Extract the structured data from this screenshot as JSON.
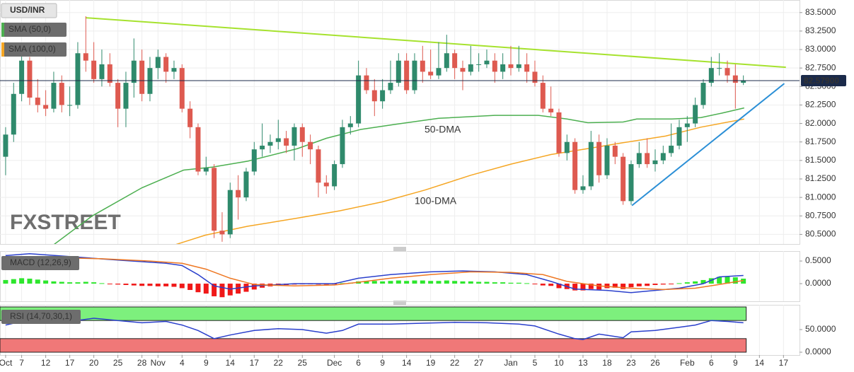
{
  "chart_data": [
    {
      "type": "candlestick",
      "title": "USD/INR",
      "watermark": "FXSTREET",
      "x": [
        0,
        1,
        2,
        3,
        4,
        5,
        6,
        7,
        8,
        9,
        10,
        11,
        12,
        13,
        14,
        15,
        16,
        17,
        18,
        19,
        20,
        21,
        22,
        23,
        24,
        25,
        26,
        27,
        28,
        29,
        30,
        31,
        32,
        33,
        34,
        35,
        36,
        37,
        38,
        39,
        40,
        41,
        42,
        43,
        44,
        45,
        46,
        47,
        48,
        49,
        50,
        51,
        52,
        53,
        54,
        55,
        56,
        57,
        58,
        59,
        60,
        61,
        62,
        63,
        64,
        65,
        66,
        67,
        68,
        69,
        70,
        71,
        72,
        73,
        74,
        75,
        76,
        77,
        78,
        79,
        80,
        81,
        82,
        83,
        84,
        85,
        86,
        87,
        88,
        89,
        90,
        91,
        92
      ],
      "open": [
        81.55,
        81.85,
        82.4,
        82.85,
        82.35,
        82.25,
        82.2,
        82.55,
        82.25,
        82.25,
        82.95,
        82.85,
        82.6,
        82.8,
        82.55,
        82.2,
        82.55,
        82.85,
        82.4,
        82.75,
        82.9,
        82.7,
        82.75,
        82.2,
        81.95,
        81.35,
        81.4,
        80.55,
        80.5,
        81.1,
        81.0,
        81.35,
        81.65,
        81.7,
        81.75,
        81.8,
        81.7,
        81.95,
        81.75,
        81.65,
        81.2,
        81.15,
        81.45,
        81.95,
        82.0,
        82.65,
        82.45,
        82.3,
        82.45,
        82.55,
        82.85,
        82.45,
        82.85,
        82.7,
        82.65,
        82.75,
        82.95,
        82.75,
        82.7,
        82.8,
        82.8,
        82.85,
        82.7,
        82.8,
        82.75,
        82.8,
        82.7,
        82.55,
        82.2,
        82.15,
        81.6,
        81.75,
        81.1,
        81.15,
        81.75,
        81.3,
        81.7,
        81.55,
        80.95,
        81.45,
        81.6,
        81.45,
        81.5,
        81.6,
        81.7,
        81.95,
        82.0,
        82.25,
        82.55,
        82.75,
        82.75,
        82.65,
        82.55
      ],
      "high": [
        81.95,
        82.55,
        82.95,
        82.9,
        82.6,
        82.45,
        82.7,
        82.65,
        82.5,
        83.1,
        83.45,
        83.1,
        83.0,
        82.95,
        82.6,
        82.7,
        83.15,
        83.0,
        82.9,
        83.0,
        82.95,
        82.85,
        82.8,
        82.3,
        82.0,
        81.55,
        81.45,
        80.8,
        81.2,
        81.3,
        81.4,
        81.75,
        82.0,
        81.85,
        82.05,
        81.9,
        82.0,
        82.0,
        81.85,
        81.7,
        81.3,
        81.5,
        82.05,
        82.1,
        82.85,
        82.75,
        82.6,
        82.6,
        82.85,
        82.95,
        82.95,
        82.95,
        83.05,
        83.0,
        83.1,
        83.2,
        83.0,
        82.85,
        83.05,
        82.95,
        83.0,
        82.95,
        82.95,
        83.05,
        83.05,
        82.95,
        82.85,
        82.65,
        82.5,
        82.2,
        81.85,
        81.8,
        81.3,
        81.9,
        81.85,
        81.8,
        81.75,
        81.6,
        81.5,
        81.75,
        81.8,
        81.65,
        81.7,
        82.0,
        82.05,
        82.1,
        82.35,
        82.6,
        82.9,
        82.95,
        82.85,
        82.8,
        82.65
      ],
      "low": [
        81.3,
        81.75,
        82.3,
        82.25,
        82.15,
        82.1,
        82.15,
        82.15,
        82.1,
        82.2,
        82.7,
        82.55,
        82.5,
        82.5,
        81.95,
        81.95,
        82.35,
        82.3,
        82.3,
        82.6,
        82.55,
        82.6,
        82.15,
        81.8,
        81.3,
        81.3,
        80.45,
        80.4,
        80.45,
        80.7,
        80.95,
        81.3,
        81.55,
        81.6,
        81.65,
        81.6,
        81.5,
        81.55,
        81.45,
        81.0,
        81.05,
        81.1,
        81.4,
        81.85,
        81.95,
        82.4,
        82.1,
        82.2,
        82.4,
        82.5,
        82.4,
        82.4,
        82.55,
        82.6,
        82.6,
        82.7,
        82.6,
        82.45,
        82.65,
        82.7,
        82.75,
        82.55,
        82.6,
        82.65,
        82.7,
        82.55,
        82.5,
        82.15,
        82.1,
        81.55,
        81.5,
        81.05,
        81.05,
        81.1,
        81.2,
        81.25,
        81.45,
        80.9,
        80.9,
        81.4,
        81.4,
        81.35,
        81.45,
        81.55,
        81.65,
        81.75,
        81.95,
        82.2,
        82.5,
        82.65,
        82.55,
        82.2,
        82.52
      ],
      "close": [
        81.85,
        82.4,
        82.85,
        82.35,
        82.25,
        82.2,
        82.55,
        82.25,
        82.25,
        82.95,
        82.85,
        82.6,
        82.8,
        82.55,
        82.2,
        82.55,
        82.85,
        82.4,
        82.75,
        82.9,
        82.7,
        82.75,
        82.2,
        81.95,
        81.35,
        81.4,
        80.55,
        80.5,
        81.1,
        81.0,
        81.35,
        81.65,
        81.7,
        81.75,
        81.8,
        81.7,
        81.95,
        81.75,
        81.65,
        81.2,
        81.15,
        81.45,
        81.95,
        82.0,
        82.65,
        82.45,
        82.3,
        82.45,
        82.55,
        82.85,
        82.45,
        82.85,
        82.7,
        82.65,
        82.75,
        82.95,
        82.75,
        82.7,
        82.8,
        82.8,
        82.85,
        82.7,
        82.8,
        82.75,
        82.8,
        82.7,
        82.55,
        82.2,
        82.15,
        81.6,
        81.75,
        81.1,
        81.15,
        81.75,
        81.3,
        81.7,
        81.55,
        80.95,
        81.45,
        81.6,
        81.45,
        81.5,
        81.6,
        81.7,
        81.95,
        82.0,
        82.25,
        82.55,
        82.75,
        82.75,
        82.65,
        82.55,
        82.58
      ],
      "up_color": "#2f8a6c",
      "down_color": "#de5a50",
      "series": [
        {
          "name": "SMA (50,0)",
          "color": "#4caf50",
          "x": [
            5.5,
            10.8,
            17,
            22.2,
            25.8,
            30.2,
            36.4,
            40,
            44.3,
            48.7,
            54,
            61,
            66.4,
            70,
            72.6,
            77,
            78.7,
            83.1,
            86.7,
            89.3,
            92.1
          ],
          "values": [
            80.32,
            80.75,
            81.13,
            81.37,
            81.41,
            81.49,
            81.66,
            81.8,
            81.92,
            81.99,
            82.07,
            82.11,
            82.11,
            82.06,
            82.01,
            82.02,
            82.06,
            82.06,
            82.08,
            82.14,
            82.21
          ]
        },
        {
          "name": "SMA (100,0)",
          "color": "#f5a623",
          "x": [
            20,
            24.9,
            30.2,
            36.4,
            41.7,
            47,
            52.3,
            58,
            63,
            68,
            72.6,
            77,
            82.3,
            86.7,
            92.1
          ],
          "values": [
            80.32,
            80.49,
            80.61,
            80.72,
            80.82,
            80.94,
            81.1,
            81.3,
            81.45,
            81.58,
            81.66,
            81.74,
            81.83,
            81.95,
            82.06
          ]
        }
      ],
      "trendlines": [
        {
          "color": "#a6e22e",
          "x": [
            10,
            97.3
          ],
          "values": [
            83.43,
            82.76
          ]
        },
        {
          "color": "#2b8fd6",
          "x": [
            78.1,
            97.1
          ],
          "values": [
            80.89,
            82.54
          ]
        }
      ],
      "annotations": [
        {
          "text": "50-DMA",
          "color": "#4caf50"
        },
        {
          "text": "100-DMA",
          "color": "#f5a623"
        }
      ],
      "last": {
        "value": 82.579,
        "label": "82.57900"
      },
      "ylim": [
        80.37,
        83.67
      ],
      "yticks": [
        {
          "value": 80.5,
          "label": "80.5000"
        },
        {
          "value": 80.75,
          "label": "80.7500"
        },
        {
          "value": 81,
          "label": "81.0000"
        },
        {
          "value": 81.25,
          "label": "81.2500"
        },
        {
          "value": 81.5,
          "label": "81.5000"
        },
        {
          "value": 81.75,
          "label": "81.7500"
        },
        {
          "value": 82,
          "label": "82.0000"
        },
        {
          "value": 82.25,
          "label": "82.2500"
        },
        {
          "value": 82.5,
          "label": "82.5000"
        },
        {
          "value": 82.75,
          "label": "82.7500"
        },
        {
          "value": 83,
          "label": "83.0000"
        },
        {
          "value": 83.25,
          "label": "83.2500"
        },
        {
          "value": 83.5,
          "label": "83.5000"
        }
      ],
      "grid": true
    },
    {
      "type": "macd",
      "title": "MACD (12,26,9)",
      "histogram": [
        0.08,
        0.1,
        0.12,
        0.11,
        0.09,
        0.07,
        0.05,
        0.04,
        0.03,
        0.03,
        0.04,
        0.03,
        0.01,
        -0.01,
        -0.02,
        -0.03,
        -0.04,
        -0.05,
        -0.05,
        -0.06,
        -0.06,
        -0.07,
        -0.1,
        -0.14,
        -0.19,
        -0.22,
        -0.28,
        -0.3,
        -0.26,
        -0.22,
        -0.18,
        -0.13,
        -0.09,
        -0.06,
        -0.04,
        -0.03,
        -0.02,
        -0.01,
        -0.01,
        -0.02,
        -0.02,
        -0.01,
        0.01,
        0.02,
        0.05,
        0.06,
        0.06,
        0.05,
        0.06,
        0.07,
        0.06,
        0.07,
        0.07,
        0.06,
        0.06,
        0.07,
        0.06,
        0.05,
        0.05,
        0.04,
        0.04,
        0.03,
        0.03,
        0.02,
        0.02,
        0.01,
        -0.01,
        -0.04,
        -0.05,
        -0.1,
        -0.12,
        -0.15,
        -0.15,
        -0.12,
        -0.13,
        -0.1,
        -0.09,
        -0.12,
        -0.08,
        -0.06,
        -0.05,
        -0.03,
        -0.02,
        -0.01,
        0.01,
        0.03,
        0.05,
        0.08,
        0.12,
        0.15,
        0.15,
        0.14,
        0.11
      ],
      "positive_color": "#2ee62e",
      "negative_color": "#f01818",
      "series": [
        {
          "color": "#2a3fcc",
          "x": [
            0,
            3,
            8,
            14,
            20,
            22,
            24,
            26,
            28,
            31,
            36,
            41,
            44,
            48,
            53,
            57,
            61,
            65,
            68,
            71,
            75,
            78,
            81,
            84,
            87,
            89,
            92
          ],
          "values": [
            0.62,
            0.66,
            0.6,
            0.52,
            0.45,
            0.4,
            0.2,
            -0.05,
            -0.12,
            -0.05,
            0.0,
            0.0,
            0.12,
            0.2,
            0.26,
            0.28,
            0.26,
            0.2,
            0.05,
            -0.12,
            -0.15,
            -0.2,
            -0.15,
            -0.1,
            0.0,
            0.15,
            0.18
          ]
        },
        {
          "color": "#ee7722",
          "x": [
            0,
            5,
            12,
            18,
            22,
            25,
            28,
            31,
            36,
            41,
            44,
            48,
            53,
            58,
            63,
            67,
            70,
            74,
            78,
            82,
            86,
            89,
            92
          ],
          "values": [
            0.5,
            0.58,
            0.55,
            0.5,
            0.45,
            0.32,
            0.12,
            -0.02,
            -0.05,
            -0.03,
            0.03,
            0.12,
            0.2,
            0.26,
            0.25,
            0.2,
            0.05,
            -0.05,
            -0.1,
            -0.13,
            -0.1,
            -0.02,
            0.07
          ]
        }
      ],
      "ylim": [
        -0.39,
        0.72
      ],
      "yticks": [
        {
          "value": 0,
          "label": "0.0000"
        },
        {
          "value": 0.5,
          "label": "0.5000"
        }
      ]
    },
    {
      "type": "rsi",
      "title": "RSI (14,70,30,1)",
      "bands": [
        {
          "range": [
            70,
            100
          ],
          "color": "#7df07d"
        },
        {
          "range": [
            0,
            30
          ],
          "color": "#f07878"
        }
      ],
      "series": [
        {
          "color": "#2a3fcc",
          "x": [
            0,
            3,
            8,
            11,
            14,
            17,
            20,
            22,
            24,
            26,
            28,
            31,
            34,
            37,
            40,
            42,
            44,
            48,
            52,
            56,
            60,
            64,
            66,
            69,
            71,
            72,
            74,
            77,
            78,
            81,
            84,
            86,
            88,
            90,
            92
          ],
          "values": [
            60,
            72,
            68,
            75,
            70,
            65,
            68,
            60,
            48,
            30,
            38,
            48,
            52,
            50,
            42,
            48,
            62,
            62,
            64,
            66,
            65,
            62,
            58,
            40,
            30,
            28,
            40,
            32,
            45,
            48,
            55,
            60,
            70,
            68,
            65
          ]
        }
      ],
      "ylim": [
        -6.25,
        104.7
      ],
      "yticks": [
        {
          "value": 0,
          "label": "0.0000"
        },
        {
          "value": 50,
          "label": "50.0000"
        }
      ],
      "xlim": [
        -0.7,
        99
      ],
      "xticks": [
        {
          "value": 0,
          "label": "Oct"
        },
        {
          "value": 2,
          "label": "7"
        },
        {
          "value": 5,
          "label": "12"
        },
        {
          "value": 8,
          "label": "17"
        },
        {
          "value": 11,
          "label": "20"
        },
        {
          "value": 14,
          "label": "25"
        },
        {
          "value": 17,
          "label": "28"
        },
        {
          "value": 19,
          "label": "Nov"
        },
        {
          "value": 22,
          "label": "4"
        },
        {
          "value": 25,
          "label": "9"
        },
        {
          "value": 28,
          "label": "14"
        },
        {
          "value": 31,
          "label": "17"
        },
        {
          "value": 34,
          "label": "22"
        },
        {
          "value": 37,
          "label": "25"
        },
        {
          "value": 41,
          "label": "Dec"
        },
        {
          "value": 44,
          "label": "6"
        },
        {
          "value": 47,
          "label": "9"
        },
        {
          "value": 50,
          "label": "14"
        },
        {
          "value": 53,
          "label": "19"
        },
        {
          "value": 56,
          "label": "22"
        },
        {
          "value": 59,
          "label": "27"
        },
        {
          "value": 63,
          "label": "Jan"
        },
        {
          "value": 66,
          "label": "5"
        },
        {
          "value": 69,
          "label": "10"
        },
        {
          "value": 72,
          "label": "13"
        },
        {
          "value": 75,
          "label": "18"
        },
        {
          "value": 78,
          "label": "23"
        },
        {
          "value": 81,
          "label": "26"
        },
        {
          "value": 85,
          "label": "Feb"
        },
        {
          "value": 88,
          "label": "6"
        },
        {
          "value": 91,
          "label": "9"
        },
        {
          "value": 94,
          "label": "14"
        },
        {
          "value": 97,
          "label": "17"
        }
      ]
    }
  ]
}
